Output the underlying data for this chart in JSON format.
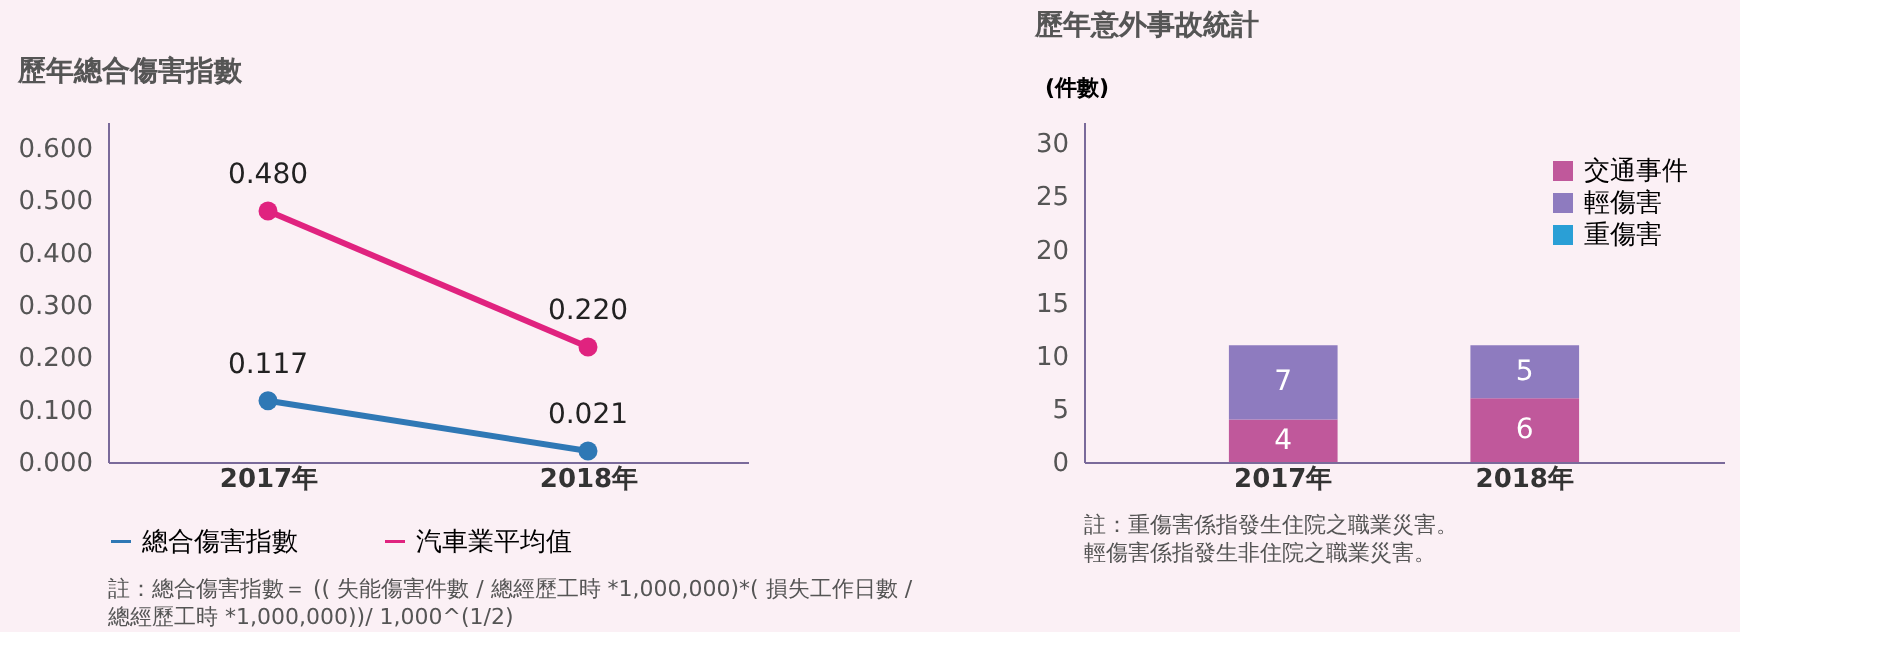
{
  "chart_data": [
    {
      "type": "line",
      "title": "歷年總合傷害指數",
      "categories": [
        "2017年",
        "2018年"
      ],
      "series": [
        {
          "name": "總合傷害指數",
          "color": "#2f78b5",
          "values": [
            0.117,
            0.021
          ],
          "value_labels": [
            "0.117",
            "0.021"
          ]
        },
        {
          "name": "汽車業平均值",
          "color": "#e0237f",
          "values": [
            0.48,
            0.22
          ],
          "value_labels": [
            "0.480",
            "0.220"
          ]
        }
      ],
      "ylim": [
        0,
        0.65
      ],
      "yticks": [
        {
          "value": 0,
          "label": "0.000"
        },
        {
          "value": 0.1,
          "label": "0.100"
        },
        {
          "value": 0.2,
          "label": "0.200"
        },
        {
          "value": 0.3,
          "label": "0.300"
        },
        {
          "value": 0.4,
          "label": "0.400"
        },
        {
          "value": 0.5,
          "label": "0.500"
        },
        {
          "value": 0.6,
          "label": "0.600"
        }
      ],
      "marker": "circle",
      "legend": "bottom",
      "grid": false,
      "annotations": [
        "註：總合傷害指數＝ (( 失能傷害件數 / 總經歷工時 *1,000,000)*( 損失工作日數 /",
        "總經歷工時 *1,000,000))/ 1,000^(1/2)"
      ]
    },
    {
      "type": "bar",
      "stacked": true,
      "title": "歷年意外事故統計",
      "ylabel": "(件數)",
      "categories": [
        "2017年",
        "2018年"
      ],
      "series": [
        {
          "name": "交通事件",
          "color": "#c0589b",
          "values": [
            4,
            6
          ],
          "value_labels": [
            "4",
            "6"
          ]
        },
        {
          "name": "輕傷害",
          "color": "#8e7bbf",
          "values": [
            7,
            5
          ],
          "value_labels": [
            "7",
            "5"
          ]
        },
        {
          "name": "重傷害",
          "color": "#2a9fd6",
          "values": [
            0,
            0
          ],
          "value_labels": [
            null,
            null
          ]
        }
      ],
      "ylim": [
        0,
        32
      ],
      "yticks": [
        0,
        5,
        10,
        15,
        20,
        25,
        30
      ],
      "legend": "top right",
      "grid": false,
      "annotations": [
        "註：重傷害係指發生住院之職業災害。",
        "輕傷害係指發生非住院之職業災害。"
      ]
    }
  ]
}
